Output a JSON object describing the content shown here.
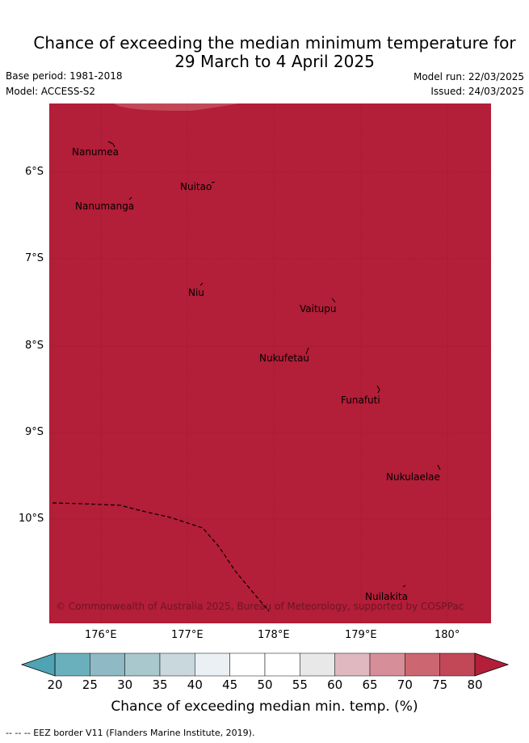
{
  "title_line1": "Chance of exceeding the median minimum temperature for",
  "title_line2": "29 March to 4 April 2025",
  "base_period": "Base period: 1981-2018",
  "model": "Model: ACCESS-S2",
  "model_run": "Model run: 22/03/2025",
  "issued": "Issued: 24/03/2025",
  "copyright": "© Commonwealth of Australia 2025, Bureau of Meteorology, supported by COSPPac",
  "lat_ticks": [
    "6°S",
    "7°S",
    "8°S",
    "9°S",
    "10°S"
  ],
  "lon_ticks": [
    "176°E",
    "177°E",
    "178°E",
    "179°E",
    "180°"
  ],
  "islands": [
    {
      "name": "Nanumea"
    },
    {
      "name": "Nuitao"
    },
    {
      "name": "Nanumanga"
    },
    {
      "name": "Niu"
    },
    {
      "name": "Vaitupu"
    },
    {
      "name": "Nukufetau"
    },
    {
      "name": "Funafuti"
    },
    {
      "name": "Nukulaelae"
    },
    {
      "name": "Nuilakita"
    }
  ],
  "colorbar": {
    "labels": [
      "20",
      "25",
      "30",
      "35",
      "40",
      "45",
      "50",
      "55",
      "60",
      "65",
      "70",
      "75",
      "80"
    ],
    "colors": [
      "#6aafbc",
      "#8eb9c5",
      "#a9c8cd",
      "#c8d8dd",
      "#eaf0f3",
      "#ffffff",
      "#ffffff",
      "#e8e8e8",
      "#e0b8c0",
      "#d68e98",
      "#cc6670",
      "#c24858"
    ],
    "under_color": "#4fa3b2",
    "over_color": "#b31e38",
    "title": "Chance of exceeding median min. temp. (%)"
  },
  "map_fill_color": "#b31e38",
  "footer": "--  --  -- EEZ border V11 (Flanders Marine Institute, 2019)."
}
